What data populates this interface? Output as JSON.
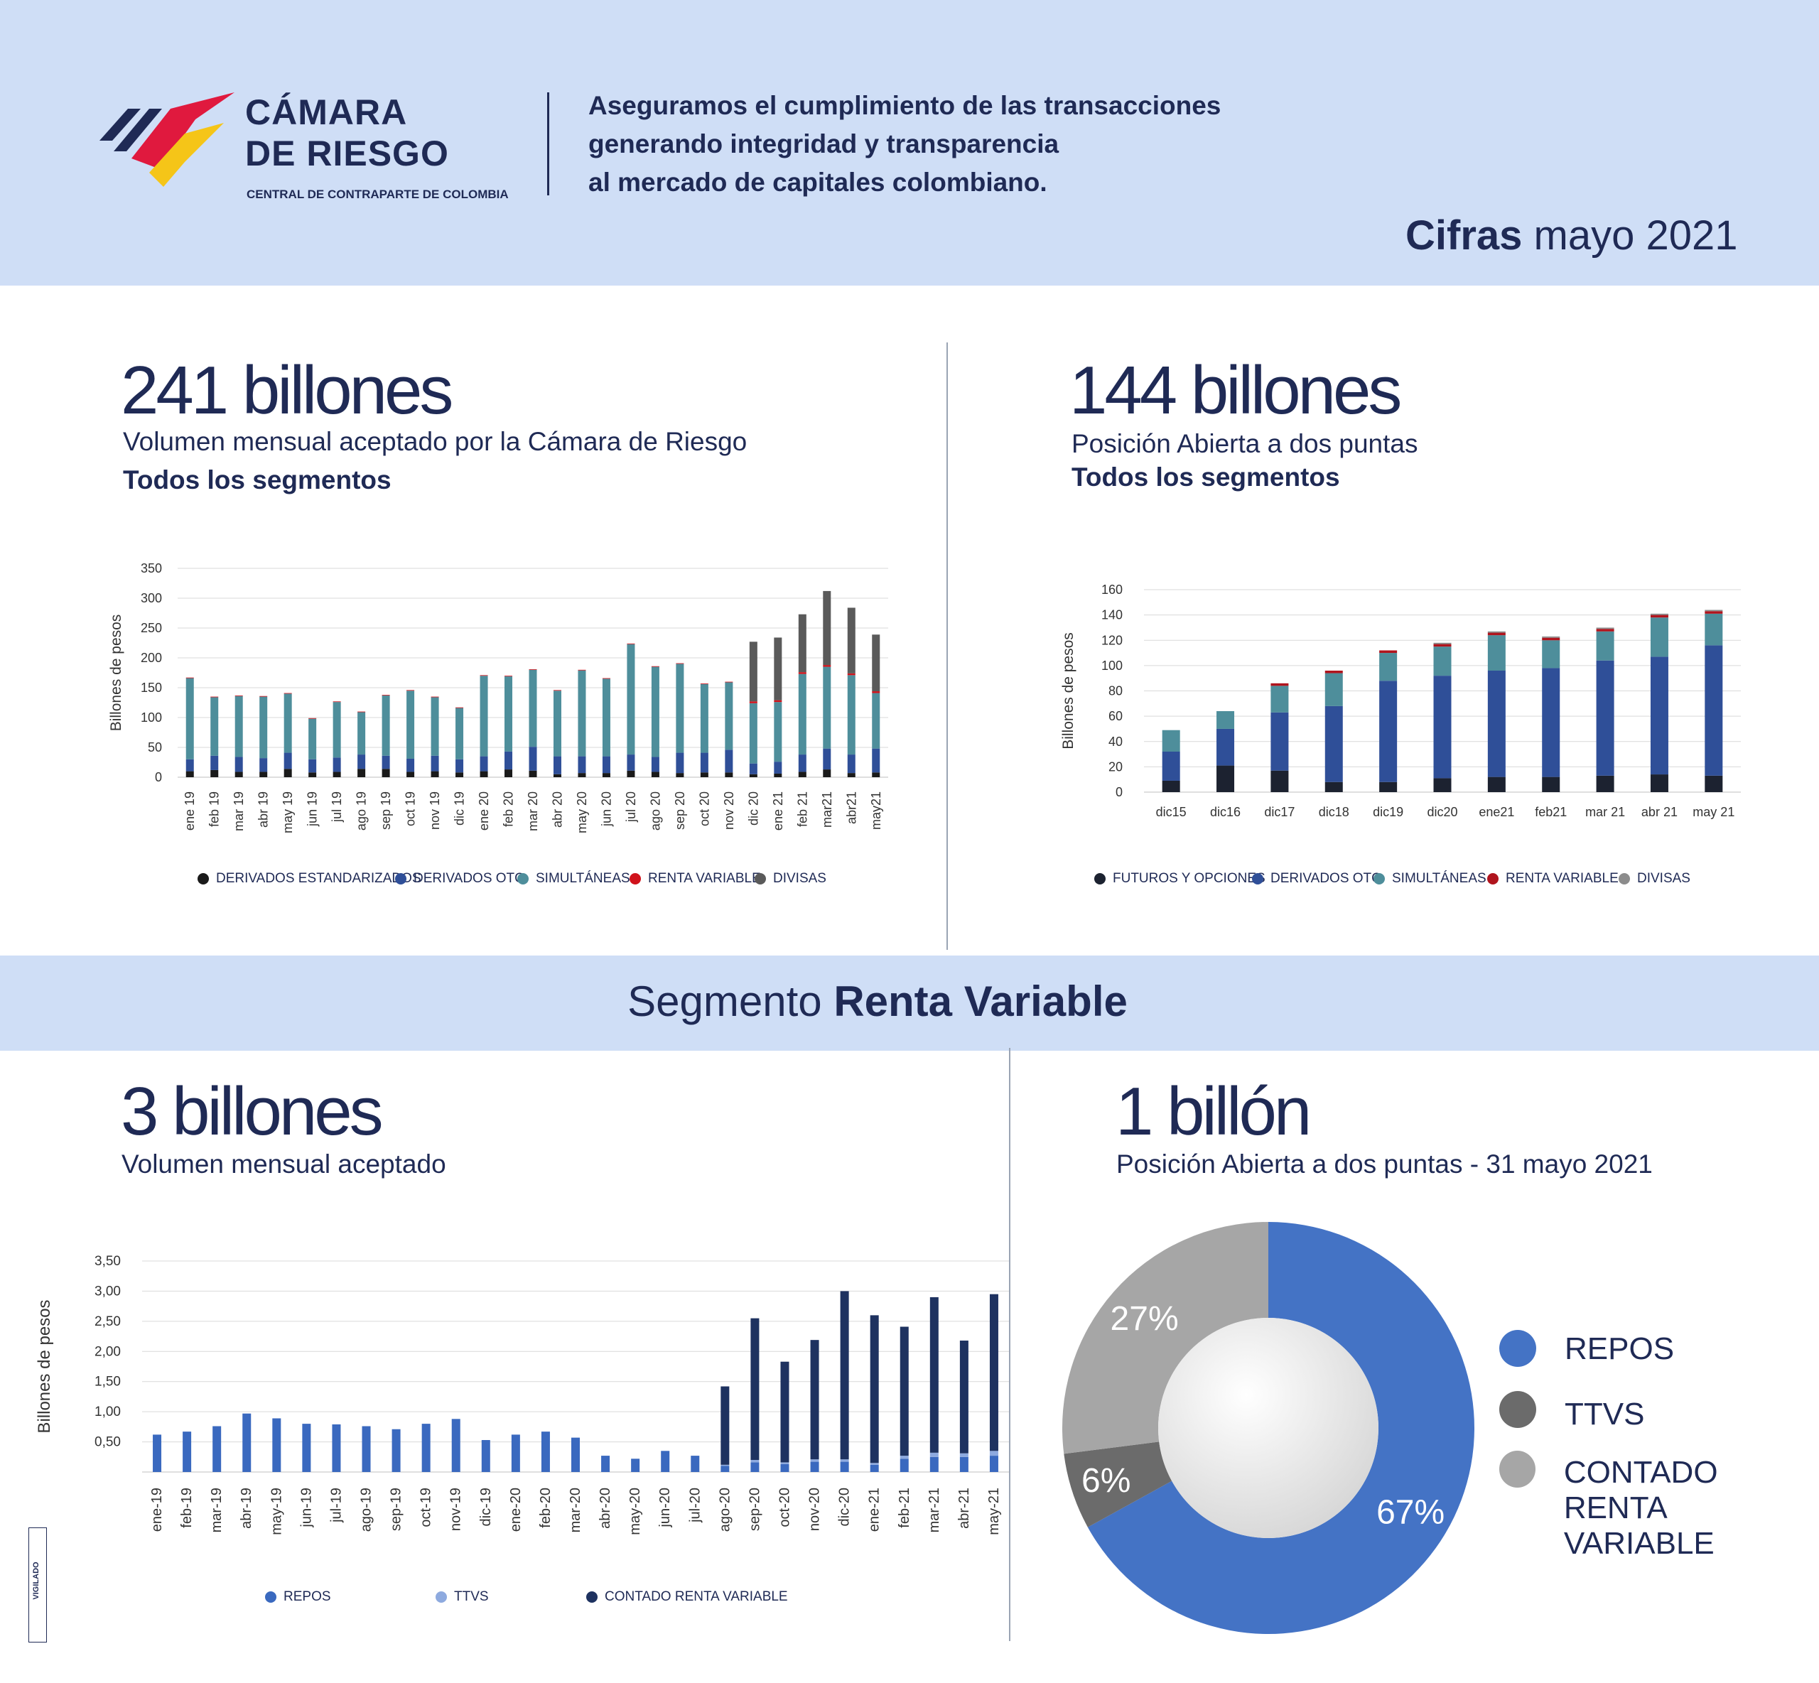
{
  "header": {
    "brand_line1": "CÁMARA",
    "brand_line2": "DE RIESGO",
    "brand_sub": "CENTRAL DE CONTRAPARTE DE COLOMBIA",
    "tagline1": "Aseguramos el cumplimiento de las transacciones",
    "tagline2": "generando integridad y transparencia",
    "tagline3": "al mercado de capitales colombiano.",
    "cifras_bold": "Cifras",
    "cifras_rest": " mayo 2021"
  },
  "panel1": {
    "big": "241 billones",
    "sub": "Volumen mensual aceptado por la Cámara de Riesgo",
    "subb": "Todos los segmentos"
  },
  "panel2": {
    "big": "144 billones",
    "sub": "Posición Abierta a dos puntas",
    "subb": "Todos los segmentos"
  },
  "segment": {
    "prefix": "Segmento ",
    "bold": "Renta Variable"
  },
  "panel3": {
    "big": "3 billones",
    "sub": "Volumen mensual aceptado"
  },
  "panel4": {
    "big": "1 billón",
    "sub": "Posición Abierta a dos puntas -  31 mayo 2021"
  },
  "vigilado": "VIGILADO",
  "chart_data": [
    {
      "type": "bar",
      "stacked": true,
      "ylabel": "Billones de pesos",
      "ylim": [
        0,
        350
      ],
      "yticks": [
        "350",
        "300",
        "250",
        "200",
        "150",
        "100",
        "50",
        "0"
      ],
      "categories": [
        "ene 19",
        "feb 19",
        "mar 19",
        "abr 19",
        "may 19",
        "jun 19",
        "jul 19",
        "ago 19",
        "sep 19",
        "oct 19",
        "nov 19",
        "dic 19",
        "ene 20",
        "feb 20",
        "mar 20",
        "abr 20",
        "may 20",
        "jun 20",
        "jul 20",
        "ago 20",
        "sep 20",
        "oct 20",
        "nov 20",
        "dic 20",
        "ene 21",
        "feb 21",
        "mar21",
        "abr21",
        "may21"
      ],
      "series": [
        {
          "name": "DERIVADOS ESTANDARIZADOS",
          "color": "#1a1a1a",
          "values": [
            10,
            12,
            9,
            9,
            14,
            8,
            9,
            14,
            14,
            9,
            10,
            8,
            10,
            13,
            11,
            5,
            7,
            7,
            11,
            9,
            7,
            8,
            8,
            5,
            6,
            9,
            13,
            7,
            8
          ]
        },
        {
          "name": "DERIVADOS OTC",
          "color": "#2f4f98",
          "values": [
            20,
            24,
            25,
            23,
            27,
            22,
            24,
            24,
            22,
            22,
            26,
            22,
            25,
            30,
            40,
            30,
            28,
            28,
            27,
            25,
            34,
            33,
            38,
            18,
            20,
            29,
            35,
            31,
            40
          ]
        },
        {
          "name": "SIMULTÁNEAS",
          "color": "#4e8e9b",
          "values": [
            136,
            98,
            102,
            103,
            99,
            68,
            93,
            71,
            101,
            114,
            98,
            86,
            135,
            126,
            129,
            110,
            144,
            130,
            185,
            151,
            149,
            115,
            113,
            101,
            100,
            135,
            137,
            133,
            93
          ]
        },
        {
          "name": "RENTA VARIABLE",
          "color": "#d0121b",
          "values": [
            1,
            1,
            1,
            1,
            1,
            1,
            1,
            1,
            1,
            1,
            1,
            1,
            1,
            1,
            1,
            1,
            1,
            1,
            1,
            1,
            1,
            1,
            1,
            3,
            3,
            3,
            3,
            3,
            3
          ]
        },
        {
          "name": "DIVISAS",
          "color": "#5a5a5a",
          "values": [
            0,
            0,
            0,
            0,
            0,
            0,
            0,
            0,
            0,
            0,
            0,
            0,
            0,
            0,
            0,
            0,
            0,
            0,
            0,
            0,
            0,
            0,
            0,
            100,
            105,
            97,
            124,
            110,
            95
          ]
        }
      ],
      "legend": [
        "DERIVADOS ESTANDARIZADOS",
        "DERIVADOS OTC",
        "SIMULTÁNEAS",
        "RENTA VARIABLE",
        "DIVISAS"
      ]
    },
    {
      "type": "bar",
      "stacked": true,
      "ylabel": "Billones de pesos",
      "ylim": [
        0,
        160
      ],
      "yticks": [
        "160",
        "140",
        "120",
        "100",
        "80",
        "60",
        "40",
        "20",
        "0"
      ],
      "categories": [
        "dic15",
        "dic16",
        "dic17",
        "dic18",
        "dic19",
        "dic20",
        "ene21",
        "feb21",
        "mar 21",
        "abr 21",
        "may 21"
      ],
      "series": [
        {
          "name": "FUTUROS Y OPCIONES",
          "color": "#1c2230",
          "values": [
            9,
            21,
            17,
            8,
            8,
            11,
            12,
            12,
            13,
            14,
            13
          ]
        },
        {
          "name": "DERIVADOS OTC",
          "color": "#2f4f98",
          "values": [
            23,
            29,
            46,
            60,
            80,
            81,
            84,
            86,
            91,
            93,
            103
          ]
        },
        {
          "name": "SIMULTÁNEAS",
          "color": "#4e8e9b",
          "values": [
            17,
            14,
            21,
            26,
            22,
            23,
            28,
            22,
            23,
            31,
            25
          ]
        },
        {
          "name": "RENTA VARIABLE",
          "color": "#b0141d",
          "values": [
            0,
            0,
            2,
            2,
            2,
            2,
            2,
            2,
            2,
            2,
            2
          ]
        },
        {
          "name": "DIVISAS",
          "color": "#8c8c8c",
          "values": [
            0,
            0,
            0,
            0,
            0,
            1,
            1,
            1,
            1,
            1,
            1
          ]
        }
      ],
      "legend": [
        "FUTUROS Y OPCIONES",
        "DERIVADOS OTC",
        "SIMULTÁNEAS",
        "RENTA VARIABLE",
        "DIVISAS"
      ]
    },
    {
      "type": "bar",
      "stacked": true,
      "ylabel": "Billones de pesos",
      "ylim": [
        0,
        3.5
      ],
      "yticks": [
        "3,50",
        "3,00",
        "2,50",
        "2,00",
        "1,50",
        "1,00",
        "0,50"
      ],
      "categories": [
        "ene-19",
        "feb-19",
        "mar-19",
        "abr-19",
        "may-19",
        "jun-19",
        "jul-19",
        "ago-19",
        "sep-19",
        "oct-19",
        "nov-19",
        "dic-19",
        "ene-20",
        "feb-20",
        "mar-20",
        "abr-20",
        "may-20",
        "jun-20",
        "jul-20",
        "ago-20",
        "sep-20",
        "oct-20",
        "nov-20",
        "dic-20",
        "ene-21",
        "feb-21",
        "mar-21",
        "abr-21",
        "may-21"
      ],
      "series": [
        {
          "name": "REPOS",
          "color": "#3a69bf",
          "values": [
            0.62,
            0.67,
            0.76,
            0.97,
            0.89,
            0.8,
            0.79,
            0.76,
            0.71,
            0.8,
            0.88,
            0.53,
            0.62,
            0.67,
            0.57,
            0.27,
            0.22,
            0.35,
            0.27,
            0.1,
            0.16,
            0.13,
            0.17,
            0.17,
            0.12,
            0.22,
            0.25,
            0.25,
            0.27
          ]
        },
        {
          "name": "TTVS",
          "color": "#8eaadf",
          "values": [
            0,
            0,
            0,
            0,
            0,
            0,
            0,
            0,
            0,
            0,
            0,
            0,
            0,
            0,
            0,
            0,
            0,
            0,
            0,
            0.02,
            0.04,
            0.03,
            0.04,
            0.04,
            0.03,
            0.05,
            0.07,
            0.06,
            0.08
          ]
        },
        {
          "name": "CONTADO RENTA VARIABLE",
          "color": "#1e3260",
          "values": [
            0,
            0,
            0,
            0,
            0,
            0,
            0,
            0,
            0,
            0,
            0,
            0,
            0,
            0,
            0,
            0,
            0,
            0,
            0,
            1.3,
            2.35,
            1.67,
            1.98,
            2.79,
            2.45,
            2.14,
            2.58,
            1.87,
            2.6
          ]
        }
      ],
      "legend": [
        "REPOS",
        "TTVS",
        "CONTADO RENTA VARIABLE"
      ]
    },
    {
      "type": "pie",
      "donut": true,
      "slices": [
        {
          "name": "REPOS",
          "value": 67,
          "label": "67%",
          "color": "#4473c5"
        },
        {
          "name": "TTVS",
          "value": 6,
          "label": "6%",
          "color": "#6b6b6b"
        },
        {
          "name": "CONTADO\nRENTA VARIABLE",
          "value": 27,
          "label": "27%",
          "color": "#a6a6a6"
        }
      ],
      "legend": [
        "REPOS",
        "TTVS",
        "CONTADO",
        "RENTA VARIABLE"
      ]
    }
  ]
}
